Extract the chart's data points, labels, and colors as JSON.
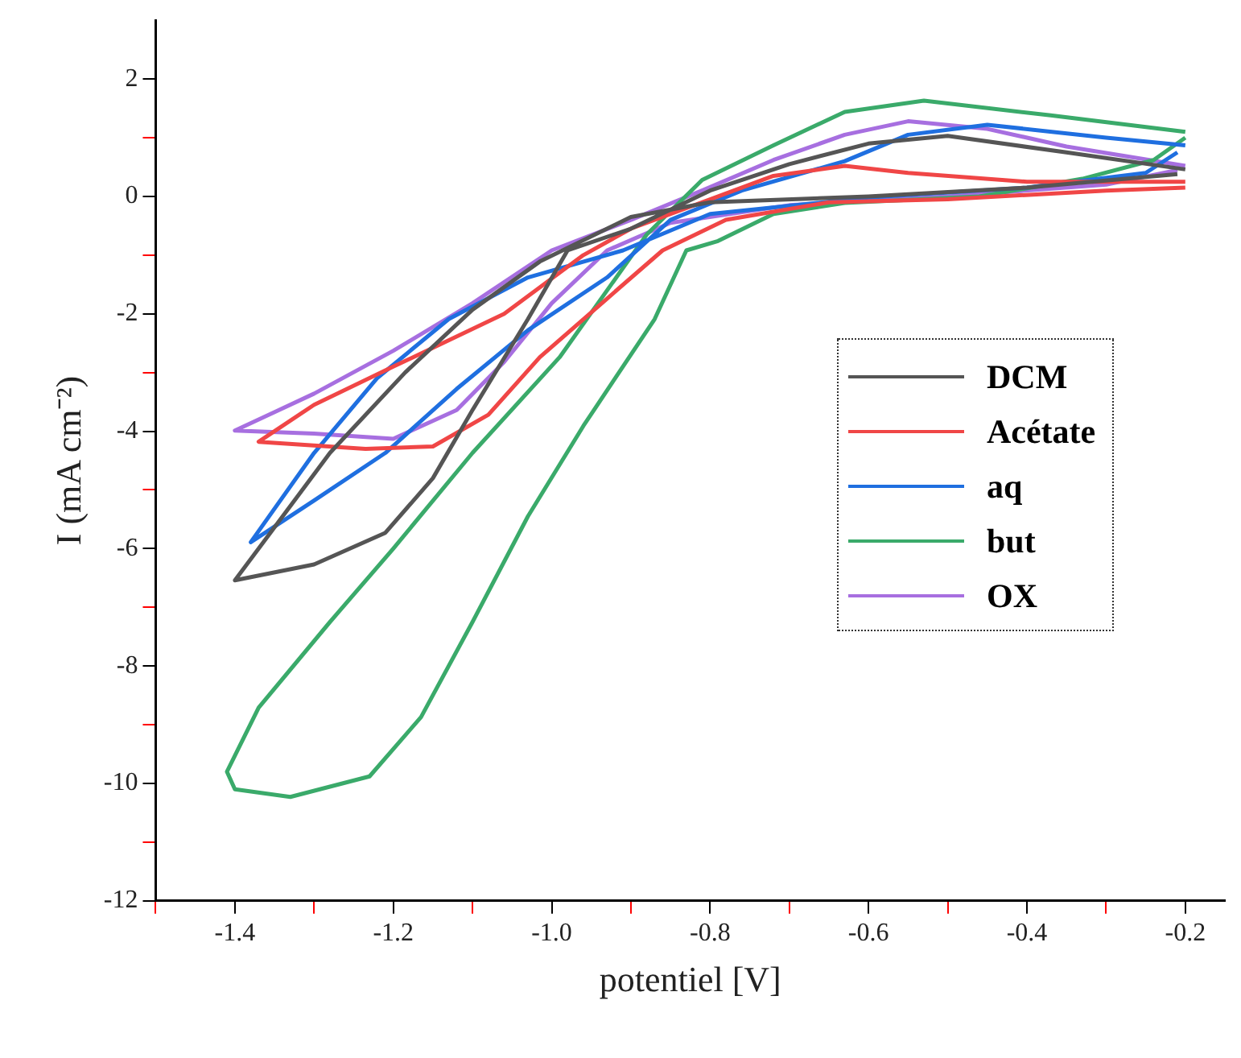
{
  "chart_data": {
    "type": "line",
    "xlabel": "potentiel [V]",
    "ylabel": "I (mA cm⁻²)",
    "xlim": [
      -1.5,
      -0.15
    ],
    "ylim": [
      -12,
      3
    ],
    "xticks": [
      {
        "value": -1.5,
        "label": null
      },
      -1.4,
      {
        "value": -1.3,
        "label": null
      },
      -1.2,
      {
        "value": -1.1,
        "label": null
      },
      {
        "value": -1.0,
        "label": "-1.0"
      },
      {
        "value": -0.9,
        "label": null
      },
      -0.8,
      {
        "value": -0.7,
        "label": null
      },
      -0.6,
      {
        "value": -0.5,
        "label": null
      },
      -0.4,
      {
        "value": -0.3,
        "label": null
      },
      -0.2
    ],
    "yticks": [
      -12,
      {
        "value": -11,
        "label": null
      },
      -10,
      {
        "value": -9,
        "label": null
      },
      -8,
      {
        "value": -7,
        "label": null
      },
      -6,
      {
        "value": -5,
        "label": null
      },
      -4,
      {
        "value": -3,
        "label": null
      },
      -2,
      {
        "value": -1,
        "label": null
      },
      0,
      {
        "value": 1,
        "label": null
      },
      2
    ],
    "grid": false,
    "legend": "right",
    "marker": "none",
    "line_style": "solid",
    "series": [
      {
        "name": "DCM",
        "color": "#555555",
        "x": [
          -0.2,
          -0.35,
          -0.5,
          -0.6,
          -0.7,
          -0.8,
          -0.9,
          -0.98,
          -1.03,
          -1.1,
          -1.15,
          -1.21,
          -1.3,
          -1.4,
          -1.37,
          -1.28,
          -1.185,
          -1.1,
          -1.015,
          -0.9,
          -0.8,
          -0.6,
          -0.4,
          -0.21
        ],
        "values": [
          0.46,
          0.75,
          1.03,
          0.9,
          0.55,
          0.1,
          -0.55,
          -0.92,
          -2.09,
          -3.64,
          -4.8,
          -5.73,
          -6.27,
          -6.54,
          -6.0,
          -4.37,
          -3.0,
          -1.93,
          -1.11,
          -0.35,
          -0.1,
          0,
          0.15,
          0.38
        ]
      },
      {
        "name": "Acétate",
        "color": "#f04646",
        "x": [
          -0.2,
          -0.4,
          -0.55,
          -0.63,
          -0.72,
          -0.8,
          -0.9,
          -0.96,
          -1.06,
          -1.2,
          -1.3,
          -1.37,
          -1.235,
          -1.15,
          -1.08,
          -1.015,
          -0.93,
          -0.86,
          -0.78,
          -0.65,
          -0.5,
          -0.3,
          -0.2
        ],
        "values": [
          0.25,
          0.25,
          0.4,
          0.52,
          0.35,
          -0.05,
          -0.55,
          -1.0,
          -2.0,
          -2.9,
          -3.55,
          -4.18,
          -4.3,
          -4.26,
          -3.72,
          -2.74,
          -1.74,
          -0.92,
          -0.4,
          -0.1,
          -0.05,
          0.1,
          0.15
        ]
      },
      {
        "name": "aq",
        "color": "#1f6fe0",
        "x": [
          -0.2,
          -0.3,
          -0.45,
          -0.55,
          -0.63,
          -0.76,
          -0.85,
          -0.93,
          -1.03,
          -1.12,
          -1.21,
          -1.3,
          -1.38,
          -1.3,
          -1.22,
          -1.13,
          -1.03,
          -0.91,
          -0.8,
          -0.6,
          -0.4,
          -0.25,
          -0.21
        ],
        "values": [
          0.87,
          1.0,
          1.22,
          1.05,
          0.6,
          0.1,
          -0.4,
          -1.38,
          -2.28,
          -3.28,
          -4.37,
          -5.18,
          -5.89,
          -4.37,
          -3.09,
          -2.09,
          -1.38,
          -0.92,
          -0.3,
          -0.02,
          0.15,
          0.4,
          0.75
        ]
      },
      {
        "name": "but",
        "color": "#3aaa6a",
        "x": [
          -0.2,
          -0.37,
          -0.53,
          -0.63,
          -0.72,
          -0.81,
          -0.88,
          -0.99,
          -1.1,
          -1.2,
          -1.28,
          -1.37,
          -1.41,
          -1.4,
          -1.33,
          -1.23,
          -1.165,
          -1.1,
          -1.03,
          -0.96,
          -0.87,
          -0.83,
          -0.79,
          -0.72,
          -0.63,
          -0.46,
          -0.33,
          -0.24,
          -0.2
        ],
        "values": [
          1.1,
          1.38,
          1.63,
          1.44,
          0.87,
          0.28,
          -0.65,
          -2.74,
          -4.37,
          -6.0,
          -7.25,
          -8.71,
          -9.8,
          -10.1,
          -10.23,
          -9.88,
          -8.87,
          -7.25,
          -5.45,
          -3.91,
          -2.09,
          -0.92,
          -0.76,
          -0.3,
          -0.11,
          0,
          0.3,
          0.62,
          1.0
        ]
      },
      {
        "name": "OX",
        "color": "#a76fe0",
        "x": [
          -0.2,
          -0.35,
          -0.45,
          -0.55,
          -0.63,
          -0.72,
          -0.81,
          -0.9,
          -1.0,
          -1.1,
          -1.2,
          -1.3,
          -1.4,
          -1.3,
          -1.2,
          -1.12,
          -1.06,
          -1.0,
          -0.93,
          -0.85,
          -0.7,
          -0.5,
          -0.3,
          -0.21
        ],
        "values": [
          0.52,
          0.85,
          1.15,
          1.28,
          1.05,
          0.62,
          0.1,
          -0.4,
          -0.92,
          -1.82,
          -2.63,
          -3.36,
          -3.99,
          -4.04,
          -4.13,
          -3.64,
          -2.82,
          -1.82,
          -0.92,
          -0.45,
          -0.15,
          0,
          0.2,
          0.45
        ]
      }
    ]
  }
}
